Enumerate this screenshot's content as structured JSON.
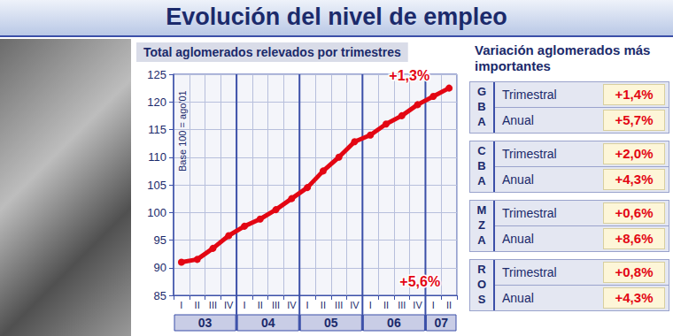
{
  "header": {
    "title": "Evolución del nivel de empleo"
  },
  "chart_data": {
    "type": "line",
    "title": "Total aglomerados relevados por trimestres",
    "y_label": "Base 100 = ago'01",
    "categories": [
      "I",
      "II",
      "III",
      "IV",
      "I",
      "II",
      "III",
      "IV",
      "I",
      "II",
      "III",
      "IV",
      "I",
      "II",
      "III",
      "IV",
      "I",
      "II"
    ],
    "years": [
      "03",
      "04",
      "05",
      "06",
      "07"
    ],
    "values": [
      91,
      91.5,
      93.5,
      95.8,
      97.5,
      98.8,
      100.5,
      102.5,
      104.5,
      107.5,
      110,
      112.8,
      114,
      116,
      117.5,
      119.5,
      121,
      122.5
    ],
    "color": "#e30613",
    "marker": "circle",
    "ylim": [
      85,
      125
    ],
    "yticks": [
      85,
      90,
      95,
      100,
      105,
      110,
      115,
      120,
      125
    ],
    "grid": true,
    "annotations": [
      "+1,3%",
      "+5,6%"
    ]
  },
  "panel": {
    "title": "Variación aglomerados más importantes",
    "regions": [
      {
        "name": "GBA",
        "rows": [
          {
            "label": "Trimestral",
            "value": "+1,4%"
          },
          {
            "label": "Anual",
            "value": "+5,7%"
          }
        ]
      },
      {
        "name": "CBA",
        "rows": [
          {
            "label": "Trimestral",
            "value": "+2,0%"
          },
          {
            "label": "Anual",
            "value": "+4,3%"
          }
        ]
      },
      {
        "name": "MZA",
        "rows": [
          {
            "label": "Trimestral",
            "value": "+0,6%"
          },
          {
            "label": "Anual",
            "value": "+8,6%"
          }
        ]
      },
      {
        "name": "ROS",
        "rows": [
          {
            "label": "Trimestral",
            "value": "+0,8%"
          },
          {
            "label": "Anual",
            "value": "+4,3%"
          }
        ]
      }
    ]
  }
}
